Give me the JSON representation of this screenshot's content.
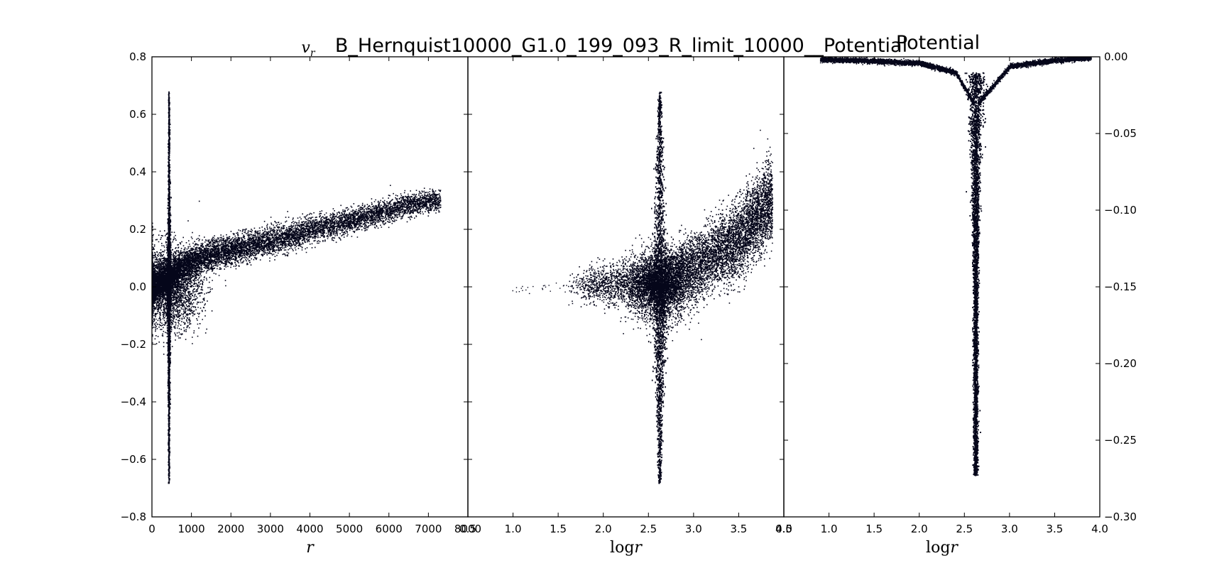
{
  "suptitle": "B_Hernquist10000_G1.0_199_093_R_limit_10000__Potential",
  "colors": {
    "points": "#05061a",
    "axes": "#000000",
    "background": "#ffffff"
  },
  "chart_data": [
    {
      "type": "scatter",
      "title": "",
      "ylabel": "v_r",
      "xlabel": "r",
      "xlim": [
        0,
        8000
      ],
      "ylim": [
        -0.8,
        0.8
      ],
      "xticks": [
        "0",
        "1000",
        "2000",
        "3000",
        "4000",
        "5000",
        "6000",
        "7000",
        "8000"
      ],
      "yticks": [
        "-0.8",
        "-0.6",
        "-0.4",
        "-0.2",
        "0.0",
        "0.2",
        "0.4",
        "0.6",
        "0.8"
      ],
      "grid": false,
      "description_points": {
        "spike_x": 420,
        "spike_ylim": [
          -0.69,
          0.67
        ],
        "band": [
          [
            0,
            0.0
          ],
          [
            1000,
            0.09
          ],
          [
            2000,
            0.13
          ],
          [
            3000,
            0.16
          ],
          [
            4000,
            0.2
          ],
          [
            5000,
            0.23
          ],
          [
            6000,
            0.27
          ],
          [
            7000,
            0.3
          ],
          [
            7300,
            0.3
          ]
        ]
      }
    },
    {
      "type": "scatter",
      "title": "",
      "xlabel": "log r",
      "xlim": [
        0.5,
        4.0
      ],
      "ylim": [
        -0.8,
        0.8
      ],
      "xticks": [
        "0.5",
        "1.0",
        "1.5",
        "2.0",
        "2.5",
        "3.0",
        "3.5",
        "4.0"
      ],
      "grid": false,
      "description_points": {
        "spike_x": 2.62,
        "spike_ylim": [
          -0.69,
          0.67
        ],
        "band": [
          [
            0.95,
            0.0
          ],
          [
            1.5,
            0.0
          ],
          [
            2.0,
            0.01
          ],
          [
            2.5,
            0.02
          ],
          [
            3.0,
            0.07
          ],
          [
            3.5,
            0.17
          ],
          [
            3.85,
            0.3
          ]
        ]
      }
    },
    {
      "type": "scatter",
      "title": "Potential",
      "xlabel": "log r",
      "xlim": [
        0.5,
        4.0
      ],
      "ylim": [
        -0.3,
        0.0
      ],
      "xticks": [
        "0.5",
        "1.0",
        "1.5",
        "2.0",
        "2.5",
        "3.0",
        "3.5",
        "4.0"
      ],
      "yticks": [
        "-0.30",
        "-0.25",
        "-0.20",
        "-0.15",
        "-0.10",
        "-0.05",
        "0.00"
      ],
      "yaxis_side": "right",
      "grid": false,
      "description_points": {
        "min_x": 2.62,
        "min_y": -0.2725,
        "curve": [
          [
            1.0,
            -0.0015
          ],
          [
            1.5,
            -0.0025
          ],
          [
            2.0,
            -0.004
          ],
          [
            2.4,
            -0.01
          ],
          [
            2.6,
            -0.03
          ],
          [
            2.62,
            -0.27
          ],
          [
            2.65,
            -0.03
          ],
          [
            3.0,
            -0.006
          ],
          [
            3.5,
            -0.002
          ],
          [
            3.9,
            -0.0003
          ]
        ]
      }
    }
  ]
}
